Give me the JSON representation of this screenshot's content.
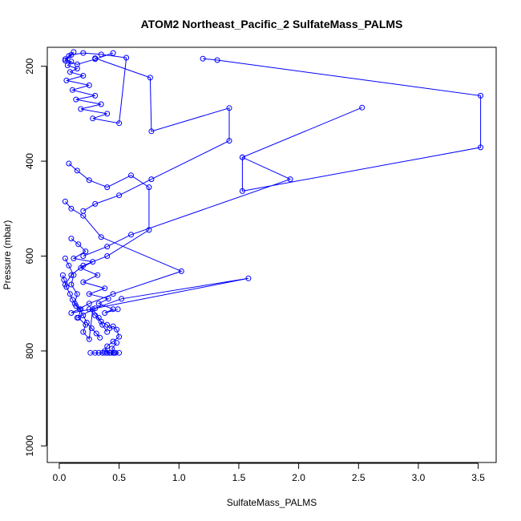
{
  "chart_data": {
    "type": "line",
    "title": "ATOM2 Northeast_Pacific_2 SulfateMass_PALMS",
    "xlabel": "SulfateMass_PALMS",
    "ylabel": "Pressure (mbar)",
    "xlim": [
      -0.1,
      3.65
    ],
    "ylim": [
      1035,
      160
    ],
    "y_axis_inverted": true,
    "grid": false,
    "xticks": [
      0.0,
      0.5,
      1.0,
      1.5,
      2.0,
      2.5,
      3.0,
      3.5
    ],
    "xtick_labels": [
      "0.0",
      "0.5",
      "1.0",
      "1.5",
      "2.0",
      "2.5",
      "3.0",
      "3.5"
    ],
    "yticks": [
      200,
      400,
      600,
      800,
      1000
    ],
    "ytick_labels": [
      "200",
      "400",
      "600",
      "800",
      "1000"
    ],
    "series_color": "#0000ff",
    "series": [
      {
        "x": [
          0.12,
          0.08,
          0.05,
          0.1,
          0.07,
          0.15,
          0.09,
          0.2,
          0.06,
          0.25,
          0.11,
          0.3,
          0.14,
          0.35,
          0.18,
          0.4,
          0.28,
          0.5,
          0.56,
          0.35,
          0.2,
          0.1,
          0.05,
          0.15,
          0.3,
          0.45
        ],
        "y": [
          170,
          178,
          185,
          190,
          198,
          205,
          212,
          220,
          230,
          240,
          250,
          262,
          270,
          280,
          290,
          300,
          310,
          320,
          182,
          175,
          172,
          176,
          188,
          196,
          185,
          172
        ]
      },
      {
        "x": [
          0.3,
          0.76,
          0.77,
          1.42,
          1.42,
          0.77,
          0.5,
          0.3,
          0.2
        ],
        "y": [
          183,
          224,
          337,
          288,
          357,
          438,
          472,
          490,
          505
        ]
      },
      {
        "x": [
          1.2,
          1.32,
          3.52,
          3.52,
          1.53,
          1.53,
          2.53,
          1.53,
          1.93,
          0.6,
          0.4,
          0.2
        ],
        "y": [
          184,
          187,
          262,
          371,
          463,
          392,
          287,
          392,
          438,
          555,
          580,
          600
        ]
      },
      {
        "x": [
          0.08,
          0.15,
          0.25,
          0.4,
          0.6,
          0.75,
          0.75,
          0.4,
          0.2,
          0.1,
          0.05
        ],
        "y": [
          405,
          420,
          440,
          455,
          430,
          455,
          545,
          600,
          620,
          640,
          660
        ]
      },
      {
        "x": [
          0.05,
          0.1,
          0.2,
          0.35,
          1.02,
          0.45,
          0.25,
          0.1,
          1.58,
          0.52,
          0.3,
          0.15
        ],
        "y": [
          485,
          500,
          515,
          560,
          632,
          680,
          700,
          720,
          647,
          690,
          710,
          730
        ]
      },
      {
        "x": [
          0.1,
          0.16,
          0.22,
          0.12,
          0.28,
          0.18,
          0.32,
          0.2,
          0.38,
          0.25,
          0.41,
          0.33,
          0.45,
          0.38,
          0.49
        ],
        "y": [
          563,
          575,
          590,
          605,
          612,
          625,
          640,
          655,
          668,
          680,
          690,
          700,
          712,
          720,
          712
        ]
      },
      {
        "x": [
          0.05,
          0.08,
          0.12,
          0.1,
          0.15,
          0.13,
          0.18,
          0.16,
          0.22,
          0.2,
          0.25,
          0.28,
          0.33,
          0.36,
          0.4
        ],
        "y": [
          605,
          620,
          640,
          660,
          680,
          700,
          712,
          730,
          745,
          760,
          775,
          712,
          730,
          745,
          760
        ]
      },
      {
        "x": [
          0.25,
          0.3,
          0.35,
          0.4,
          0.42,
          0.45,
          0.48,
          0.5,
          0.45,
          0.4,
          0.38,
          0.42,
          0.46,
          0.44,
          0.48
        ],
        "y": [
          712,
          725,
          738,
          745,
          752,
          748,
          755,
          770,
          780,
          790,
          800,
          804,
          804,
          795,
          783
        ]
      },
      {
        "x": [
          0.26,
          0.3,
          0.33,
          0.36,
          0.38,
          0.4,
          0.43,
          0.45,
          0.47,
          0.5
        ],
        "y": [
          804,
          804,
          804,
          804,
          804,
          804,
          804,
          804,
          804,
          804
        ]
      },
      {
        "x": [
          0.03,
          0.04,
          0.06,
          0.09,
          0.11,
          0.14,
          0.17,
          0.2,
          0.23,
          0.27,
          0.31,
          0.34
        ],
        "y": [
          640,
          650,
          665,
          680,
          692,
          705,
          712,
          725,
          740,
          752,
          763,
          772
        ]
      }
    ]
  }
}
